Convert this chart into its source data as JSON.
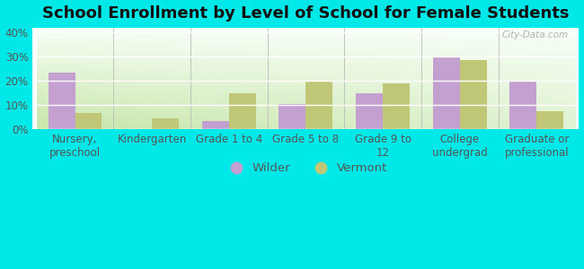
{
  "title": "School Enrollment by Level of School for Female Students",
  "categories": [
    "Nursery,\npreschool",
    "Kindergarten",
    "Grade 1 to 4",
    "Grade 5 to 8",
    "Grade 9 to\n12",
    "College\nundergrad",
    "Graduate or\nprofessional"
  ],
  "wilder_values": [
    23.5,
    0,
    3.5,
    10.5,
    15.0,
    30.0,
    19.5
  ],
  "vermont_values": [
    6.5,
    4.5,
    15.0,
    19.5,
    19.0,
    28.5,
    7.5
  ],
  "wilder_color": "#c4a0d0",
  "vermont_color": "#c0c878",
  "background_color": "#00e8e8",
  "ylim": [
    0,
    42
  ],
  "yticks": [
    0,
    10,
    20,
    30,
    40
  ],
  "ytick_labels": [
    "0%",
    "10%",
    "20%",
    "30%",
    "40%"
  ],
  "bar_width": 0.35,
  "legend_labels": [
    "Wilder",
    "Vermont"
  ],
  "title_fontsize": 13,
  "tick_fontsize": 8.5,
  "legend_fontsize": 9.5,
  "grad_top": "#f8fff8",
  "grad_bottom": "#c8e8b0",
  "grad_right": "#ffffff",
  "separator_color": "#bbbbbb"
}
